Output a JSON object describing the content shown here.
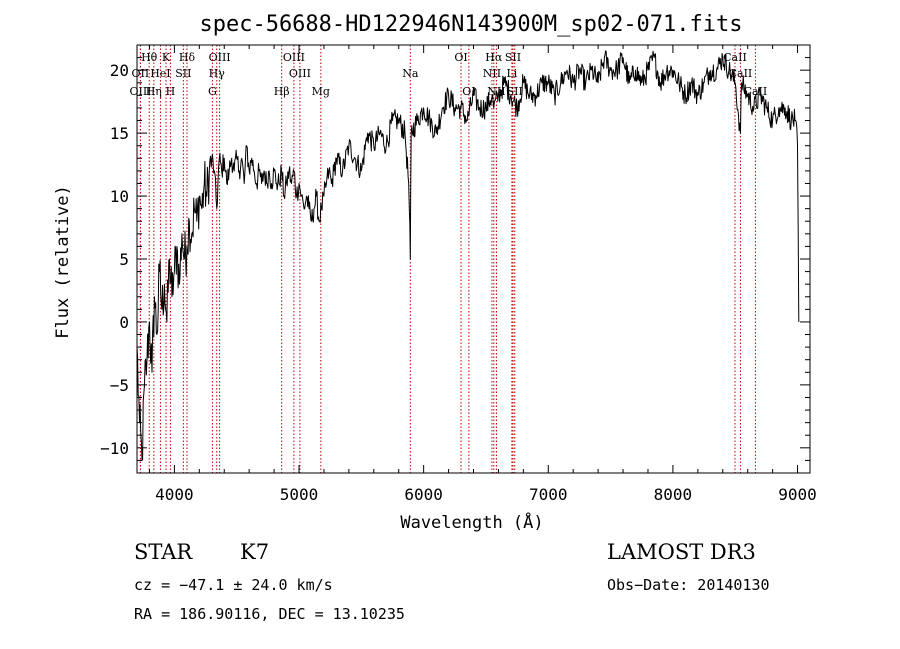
{
  "chart_data": {
    "type": "line",
    "title": "spec-56688-HD122946N143900M_sp02-071.fits",
    "xlabel": "Wavelength (Å)",
    "ylabel": "Flux (relative)",
    "xlim": [
      3700,
      9100
    ],
    "ylim": [
      -12,
      22
    ],
    "xticks": [
      4000,
      5000,
      6000,
      7000,
      8000,
      9000
    ],
    "yticks": [
      -10,
      -5,
      0,
      5,
      10,
      15,
      20
    ],
    "series": [
      {
        "name": "flux",
        "x": [
          3700,
          3720,
          3740,
          3760,
          3780,
          3800,
          3820,
          3840,
          3860,
          3880,
          3900,
          3920,
          3940,
          3960,
          3980,
          4000,
          4020,
          4040,
          4060,
          4080,
          4100,
          4120,
          4140,
          4160,
          4180,
          4200,
          4220,
          4240,
          4260,
          4280,
          4300,
          4320,
          4340,
          4360,
          4380,
          4400,
          4420,
          4440,
          4460,
          4480,
          4500,
          4520,
          4540,
          4560,
          4580,
          4600,
          4620,
          4640,
          4660,
          4680,
          4700,
          4720,
          4740,
          4760,
          4780,
          4800,
          4820,
          4840,
          4860,
          4880,
          4900,
          4920,
          4940,
          4960,
          4980,
          5000,
          5020,
          5040,
          5060,
          5080,
          5100,
          5120,
          5140,
          5160,
          5180,
          5200,
          5220,
          5240,
          5260,
          5280,
          5300,
          5350,
          5400,
          5450,
          5500,
          5550,
          5600,
          5650,
          5700,
          5750,
          5800,
          5850,
          5880,
          5893,
          5900,
          5950,
          6000,
          6050,
          6100,
          6150,
          6200,
          6250,
          6300,
          6350,
          6400,
          6450,
          6500,
          6550,
          6563,
          6600,
          6650,
          6700,
          6750,
          6800,
          6850,
          6900,
          6950,
          7000,
          7050,
          7100,
          7150,
          7200,
          7250,
          7300,
          7350,
          7400,
          7450,
          7500,
          7550,
          7600,
          7650,
          7700,
          7750,
          7800,
          7850,
          7900,
          7950,
          8000,
          8050,
          8100,
          8150,
          8200,
          8250,
          8300,
          8350,
          8400,
          8450,
          8500,
          8542,
          8550,
          8600,
          8650,
          8700,
          8750,
          8800,
          8850,
          8900,
          8950,
          8980,
          9000,
          9010
        ],
        "values": [
          -2,
          -8,
          -11,
          -5,
          -3,
          0,
          -4,
          2,
          -1,
          4,
          1,
          3,
          0,
          5,
          2,
          4,
          6,
          3,
          7,
          5,
          6,
          8,
          7,
          9,
          8,
          10,
          9,
          11,
          10,
          12,
          13,
          12,
          9,
          13,
          12,
          13,
          11,
          12,
          13,
          12,
          13,
          12,
          13,
          11,
          14,
          12,
          13,
          12,
          11,
          12,
          11,
          12,
          11,
          12,
          11,
          12,
          11,
          11,
          12,
          10,
          11,
          12,
          11,
          12,
          10,
          11,
          10,
          9,
          10,
          9,
          8,
          9,
          10,
          8,
          9,
          10,
          11,
          12,
          11,
          12,
          13,
          12,
          14,
          13,
          12,
          15,
          14,
          15,
          14,
          16,
          16,
          15,
          11,
          5,
          15,
          16,
          17,
          16,
          15,
          17,
          18,
          17,
          17,
          16,
          18,
          17,
          17,
          18,
          17,
          18,
          19,
          18,
          17,
          19,
          18,
          18,
          19,
          19,
          18,
          19,
          20,
          19,
          20,
          19,
          20,
          19,
          21,
          20,
          20,
          21,
          19,
          20,
          19,
          20,
          21,
          19,
          20,
          20,
          19,
          18,
          19,
          18,
          19,
          20,
          20,
          21,
          20,
          19,
          15,
          19,
          18,
          17,
          18,
          17,
          16,
          17,
          17,
          16,
          16,
          14,
          0
        ]
      }
    ],
    "line_markers": [
      {
        "label": "Hθ",
        "wavelength": 3798,
        "row": 0
      },
      {
        "label": "OII",
        "wavelength": 3727,
        "row": 1
      },
      {
        "label": "OIII",
        "wavelength": 3728,
        "row": 2
      },
      {
        "label": "Hη",
        "wavelength": 3835,
        "row": 2
      },
      {
        "label": "K",
        "wavelength": 3933,
        "row": 0
      },
      {
        "label": "HeI",
        "wavelength": 3888,
        "row": 1
      },
      {
        "label": "H",
        "wavelength": 3968,
        "row": 2
      },
      {
        "label": "Hδ",
        "wavelength": 4101,
        "row": 0
      },
      {
        "label": "SII",
        "wavelength": 4072,
        "row": 1
      },
      {
        "label": "OIII",
        "wavelength": 4363,
        "row": 0
      },
      {
        "label": "Hγ",
        "wavelength": 4340,
        "row": 1
      },
      {
        "label": "G",
        "wavelength": 4305,
        "row": 2
      },
      {
        "label": "OIII",
        "wavelength": 4959,
        "row": 0
      },
      {
        "label": "OIII",
        "wavelength": 5007,
        "row": 1
      },
      {
        "label": "Hβ",
        "wavelength": 4861,
        "row": 2
      },
      {
        "label": "Mg",
        "wavelength": 5175,
        "row": 2
      },
      {
        "label": "Na",
        "wavelength": 5893,
        "row": 1
      },
      {
        "label": "OI",
        "wavelength": 6300,
        "row": 0
      },
      {
        "label": "OI",
        "wavelength": 6363,
        "row": 2
      },
      {
        "label": "Hα",
        "wavelength": 6563,
        "row": 0
      },
      {
        "label": "NII",
        "wavelength": 6548,
        "row": 1
      },
      {
        "label": "NII",
        "wavelength": 6584,
        "row": 2
      },
      {
        "label": "SII",
        "wavelength": 6717,
        "row": 0
      },
      {
        "label": "Li",
        "wavelength": 6708,
        "row": 1
      },
      {
        "label": "SII",
        "wavelength": 6731,
        "row": 2
      },
      {
        "label": "CaII",
        "wavelength": 8498,
        "row": 0
      },
      {
        "label": "CaII",
        "wavelength": 8542,
        "row": 1
      },
      {
        "label": "CaII",
        "wavelength": 8662,
        "row": 2
      }
    ],
    "marker_color": "#c00000",
    "grid": false
  },
  "info": {
    "class_label": "STAR",
    "subclass": "K7",
    "cz": "cz = −47.1 ± 24.0 km/s",
    "radec": "RA = 186.90116, DEC =  13.10235",
    "survey": "LAMOST DR3",
    "obs_date": "Obs−Date: 20140130"
  }
}
